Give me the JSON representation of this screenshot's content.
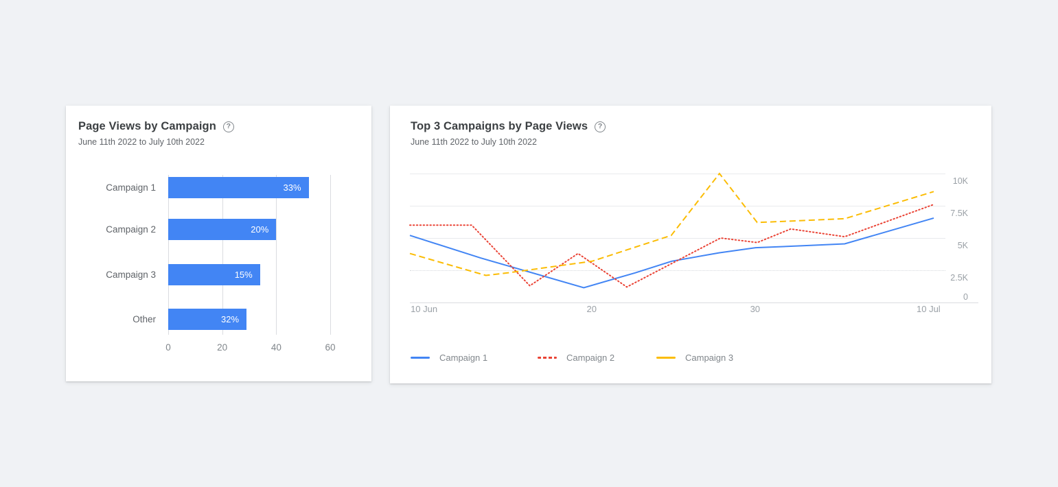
{
  "page": {
    "background": "#f0f2f5",
    "card_background": "#ffffff"
  },
  "palette": {
    "blue": "#4285f4",
    "red": "#ea4335",
    "yellow": "#fbbc04"
  },
  "cards": [
    {
      "title": "Page Views by Campaign",
      "subtitle": "June 11th 2022 to July 10th 2022",
      "help_glyph": "?"
    },
    {
      "title": "Top 3 Campaigns by Page Views",
      "subtitle": "June 11th 2022 to July 10th 2022",
      "help_glyph": "?"
    }
  ],
  "chart_data": [
    {
      "type": "bar",
      "orientation": "horizontal",
      "title": "Page Views by Campaign",
      "categories": [
        "Campaign 1",
        "Campaign 2",
        "Campaign 3",
        "Other"
      ],
      "values_axis_units": [
        52,
        40,
        34,
        29
      ],
      "bar_labels": [
        "33%",
        "20%",
        "15%",
        "32%"
      ],
      "x_ticks": [
        0,
        20,
        40,
        60
      ],
      "xlim": [
        0,
        60
      ],
      "bar_color": "#4285f4",
      "grid": "vertical-only",
      "value_labels_inside_bar": true
    },
    {
      "type": "line",
      "title": "Top 3 Campaigns by Page Views",
      "x_range": [
        "June 11 2022",
        "July 10 2022"
      ],
      "x_ticks": [
        {
          "label": "10 Jun",
          "f": 0.027
        },
        {
          "label": "20",
          "f": 0.347
        },
        {
          "label": "30",
          "f": 0.659
        },
        {
          "label": "10 Jul",
          "f": 0.99
        }
      ],
      "y_ticks": [
        {
          "label": "10K",
          "value": 10000
        },
        {
          "label": "7.5K",
          "value": 7500
        },
        {
          "label": "5K",
          "value": 5000
        },
        {
          "label": "2.5K",
          "value": 2500,
          "line_style": "dotted"
        },
        {
          "label": "0",
          "value": 0
        }
      ],
      "ylim": [
        0,
        10000
      ],
      "y_axis_side": "right",
      "grid": "horizontal-only",
      "legend_position": "bottom",
      "series": [
        {
          "name": "Campaign 1",
          "color": "#4285f4",
          "style": "solid",
          "points": [
            [
              0.0,
              5200
            ],
            [
              0.135,
              3450
            ],
            [
              0.332,
              1150
            ],
            [
              0.43,
              2300
            ],
            [
              0.5,
              3200
            ],
            [
              0.59,
              3850
            ],
            [
              0.66,
              4250
            ],
            [
              0.75,
              4400
            ],
            [
              0.83,
              4550
            ],
            [
              1.0,
              6550
            ]
          ]
        },
        {
          "name": "Campaign 2",
          "color": "#ea4335",
          "style": "dotted",
          "points": [
            [
              0.0,
              6000
            ],
            [
              0.118,
              6000
            ],
            [
              0.229,
              1300
            ],
            [
              0.321,
              3800
            ],
            [
              0.414,
              1200
            ],
            [
              0.593,
              5000
            ],
            [
              0.663,
              4650
            ],
            [
              0.727,
              5700
            ],
            [
              0.83,
              5100
            ],
            [
              1.0,
              7600
            ]
          ]
        },
        {
          "name": "Campaign 3",
          "color": "#fbbc04",
          "style": "dashed",
          "points": [
            [
              0.0,
              3800
            ],
            [
              0.145,
              2100
            ],
            [
              0.187,
              2300
            ],
            [
              0.348,
              3200
            ],
            [
              0.499,
              5200
            ],
            [
              0.591,
              10000
            ],
            [
              0.663,
              6200
            ],
            [
              0.83,
              6500
            ],
            [
              1.0,
              8600
            ]
          ]
        }
      ]
    }
  ]
}
